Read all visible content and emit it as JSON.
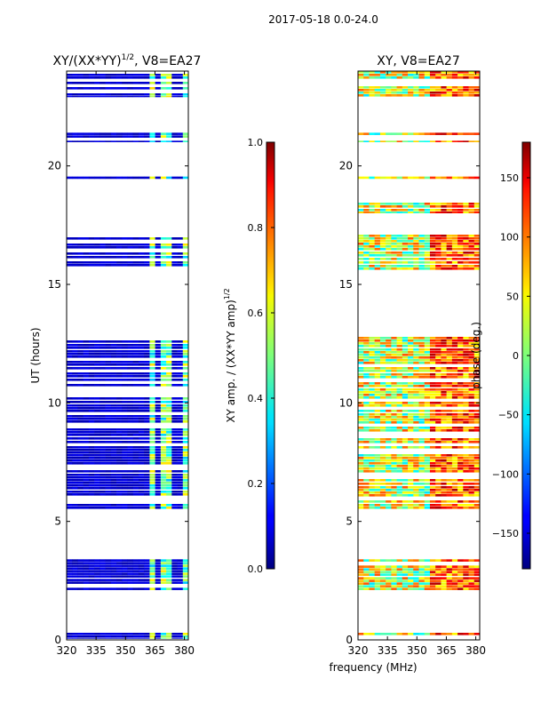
{
  "figure": {
    "suptitle": "2017-05-18 0.0-24.0",
    "xlabel": "frequency (MHz)"
  },
  "chart_data": [
    {
      "type": "heatmap",
      "title_main": "XY/(XX*YY)",
      "title_sup": "1/2",
      "title_suffix": ", V8=EA27",
      "xlabel": "",
      "ylabel": "UT (hours)",
      "xlim": [
        320,
        382
      ],
      "ylim": [
        0,
        24
      ],
      "xticks": [
        320,
        335,
        350,
        365,
        380
      ],
      "yticks": [
        0,
        5,
        10,
        15,
        20
      ],
      "colorbar": {
        "label_main": "XY amp. / (XX*YY amp)",
        "label_sup": "1/2",
        "range": [
          0.0,
          1.0
        ],
        "ticks": [
          0.0,
          0.2,
          0.4,
          0.6,
          0.8,
          1.0
        ],
        "tick_labels": [
          "0.0",
          "0.2",
          "0.4",
          "0.6",
          "0.8",
          "1.0"
        ]
      },
      "data_intervals_hours": [
        [
          0.05,
          0.3
        ],
        [
          2.1,
          3.4
        ],
        [
          5.5,
          12.9
        ],
        [
          15.6,
          17.1
        ],
        [
          19.45,
          19.55
        ],
        [
          21.0,
          21.4
        ],
        [
          22.9,
          24.0
        ]
      ],
      "bright_bands_mhz": [
        [
          362,
          366
        ],
        [
          368,
          370
        ],
        [
          371,
          373
        ],
        [
          376,
          377
        ],
        [
          378,
          381
        ]
      ],
      "typical_amplitude": 0.05,
      "band_amplitude": 0.45
    },
    {
      "type": "heatmap",
      "title_main": "XY, V8=EA27",
      "title_sup": "",
      "title_suffix": "",
      "xlabel": "",
      "ylabel": "",
      "xlim": [
        320,
        382
      ],
      "ylim": [
        0,
        24
      ],
      "xticks": [
        320,
        335,
        350,
        365,
        380
      ],
      "yticks": [
        0,
        5,
        10,
        15,
        20
      ],
      "colorbar": {
        "label_main": "phase (deg.)",
        "label_sup": "",
        "range": [
          -180,
          180
        ],
        "ticks": [
          -150,
          -100,
          -50,
          0,
          50,
          100,
          150
        ],
        "tick_labels": [
          "−150",
          "−100",
          "−50",
          "0",
          "50",
          "100",
          "150"
        ]
      },
      "data_intervals_hours": [
        [
          0.05,
          0.3
        ],
        [
          2.1,
          3.4
        ],
        [
          5.5,
          12.9
        ],
        [
          15.6,
          17.1
        ],
        [
          18.0,
          18.6
        ],
        [
          19.45,
          19.55
        ],
        [
          21.0,
          21.4
        ],
        [
          22.9,
          24.0
        ]
      ],
      "red_band_mhz": [
        356,
        382
      ],
      "phase_range_deg": [
        -180,
        180
      ]
    }
  ]
}
